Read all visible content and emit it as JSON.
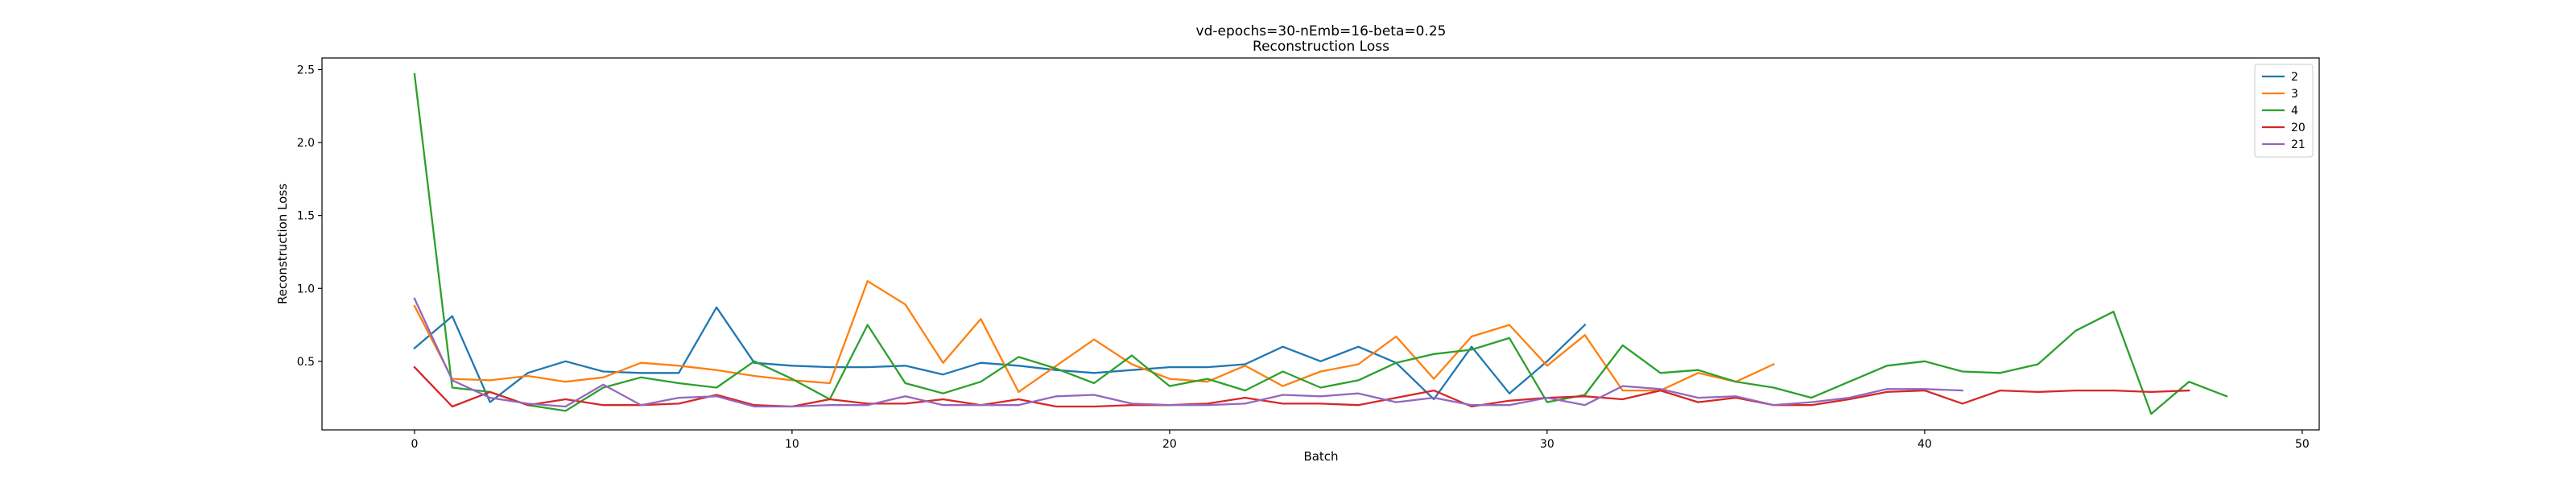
{
  "chart_data": {
    "type": "line",
    "title": "vd-epochs=30-nEmb=16-beta=0.25",
    "subtitle": "Reconstruction Loss",
    "xlabel": "Batch",
    "ylabel": "Reconstruction Loss",
    "xlim": [
      -2.45,
      50.45
    ],
    "ylim": [
      0.03,
      2.58
    ],
    "xticks": [
      0,
      10,
      20,
      30,
      40,
      50
    ],
    "yticks": [
      0.5,
      1.0,
      1.5,
      2.0,
      2.5
    ],
    "ytick_labels": [
      "0.5",
      "1.0",
      "1.5",
      "2.0",
      "2.5"
    ],
    "grid": false,
    "legend_position": "top-right",
    "series": [
      {
        "name": "2",
        "color": "#1f77b4",
        "x": [
          0,
          1,
          2,
          3,
          4,
          5,
          6,
          7,
          8,
          9,
          10,
          11,
          12,
          13,
          14,
          15,
          16,
          17,
          18,
          19,
          20,
          21,
          22,
          23,
          24,
          25,
          26,
          27,
          28,
          29,
          30,
          31
        ],
        "values": [
          0.59,
          0.81,
          0.22,
          0.42,
          0.5,
          0.43,
          0.42,
          0.42,
          0.87,
          0.49,
          0.47,
          0.46,
          0.46,
          0.47,
          0.41,
          0.49,
          0.47,
          0.44,
          0.42,
          0.44,
          0.46,
          0.46,
          0.48,
          0.6,
          0.5,
          0.6,
          0.49,
          0.24,
          0.6,
          0.28,
          0.5,
          0.75
        ]
      },
      {
        "name": "3",
        "color": "#ff7f0e",
        "x": [
          0,
          1,
          2,
          3,
          4,
          5,
          6,
          7,
          8,
          9,
          10,
          11,
          12,
          13,
          14,
          15,
          16,
          17,
          18,
          19,
          20,
          21,
          22,
          23,
          24,
          25,
          26,
          27,
          28,
          29,
          30,
          31,
          32,
          33,
          34,
          35,
          36
        ],
        "values": [
          0.88,
          0.38,
          0.37,
          0.4,
          0.36,
          0.39,
          0.49,
          0.47,
          0.44,
          0.4,
          0.37,
          0.35,
          1.05,
          0.89,
          0.49,
          0.79,
          0.29,
          0.47,
          0.65,
          0.48,
          0.38,
          0.36,
          0.47,
          0.33,
          0.43,
          0.48,
          0.67,
          0.38,
          0.67,
          0.75,
          0.47,
          0.68,
          0.3,
          0.3,
          0.42,
          0.36,
          0.48
        ]
      },
      {
        "name": "4",
        "color": "#2ca02c",
        "x": [
          0,
          1,
          2,
          3,
          4,
          5,
          6,
          7,
          8,
          9,
          10,
          11,
          12,
          13,
          14,
          15,
          16,
          17,
          18,
          19,
          20,
          21,
          22,
          23,
          24,
          25,
          26,
          27,
          28,
          29,
          30,
          31,
          32,
          33,
          34,
          35,
          36,
          37,
          38,
          39,
          40,
          41,
          42,
          43,
          44,
          45,
          46,
          47,
          48
        ],
        "values": [
          2.47,
          0.32,
          0.29,
          0.2,
          0.16,
          0.32,
          0.39,
          0.35,
          0.32,
          0.5,
          0.38,
          0.24,
          0.75,
          0.35,
          0.28,
          0.36,
          0.53,
          0.45,
          0.35,
          0.54,
          0.33,
          0.38,
          0.3,
          0.43,
          0.32,
          0.37,
          0.49,
          0.55,
          0.58,
          0.66,
          0.22,
          0.27,
          0.61,
          0.42,
          0.44,
          0.36,
          0.32,
          0.25,
          0.36,
          0.47,
          0.5,
          0.43,
          0.42,
          0.48,
          0.71,
          0.84,
          0.14,
          0.36,
          0.26
        ]
      },
      {
        "name": "20",
        "color": "#d62728",
        "x": [
          0,
          1,
          2,
          3,
          4,
          5,
          6,
          7,
          8,
          9,
          10,
          11,
          12,
          13,
          14,
          15,
          16,
          17,
          18,
          19,
          20,
          21,
          22,
          23,
          24,
          25,
          26,
          27,
          28,
          29,
          30,
          31,
          32,
          33,
          34,
          35,
          36,
          37,
          38,
          39,
          40,
          41,
          42,
          43,
          44,
          45,
          46,
          47
        ],
        "values": [
          0.46,
          0.19,
          0.29,
          0.2,
          0.24,
          0.2,
          0.2,
          0.21,
          0.27,
          0.2,
          0.19,
          0.24,
          0.21,
          0.21,
          0.24,
          0.2,
          0.24,
          0.19,
          0.19,
          0.2,
          0.2,
          0.21,
          0.25,
          0.21,
          0.21,
          0.2,
          0.25,
          0.3,
          0.19,
          0.23,
          0.25,
          0.26,
          0.24,
          0.3,
          0.22,
          0.25,
          0.2,
          0.2,
          0.24,
          0.29,
          0.3,
          0.21,
          0.3,
          0.29,
          0.3,
          0.3,
          0.29,
          0.3
        ]
      },
      {
        "name": "21",
        "color": "#9467bd",
        "x": [
          0,
          1,
          2,
          3,
          4,
          5,
          6,
          7,
          8,
          9,
          10,
          11,
          12,
          13,
          14,
          15,
          16,
          17,
          18,
          19,
          20,
          21,
          22,
          23,
          24,
          25,
          26,
          27,
          28,
          29,
          30,
          31,
          32,
          33,
          34,
          35,
          36,
          37,
          38,
          39,
          40,
          41
        ],
        "values": [
          0.93,
          0.37,
          0.25,
          0.21,
          0.19,
          0.34,
          0.2,
          0.25,
          0.26,
          0.19,
          0.19,
          0.2,
          0.2,
          0.26,
          0.2,
          0.2,
          0.2,
          0.26,
          0.27,
          0.21,
          0.2,
          0.2,
          0.21,
          0.27,
          0.26,
          0.28,
          0.22,
          0.25,
          0.2,
          0.2,
          0.25,
          0.2,
          0.33,
          0.31,
          0.25,
          0.26,
          0.2,
          0.22,
          0.25,
          0.31,
          0.31,
          0.3
        ]
      }
    ]
  }
}
